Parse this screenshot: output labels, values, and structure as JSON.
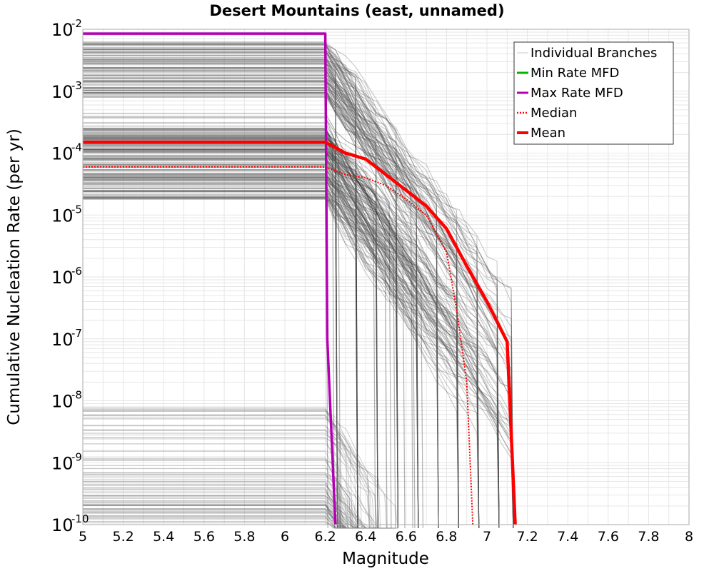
{
  "chart_data": {
    "type": "line",
    "title": "Desert Mountains (east, unnamed)",
    "xlabel": "Magnitude",
    "ylabel": "Cumulative Nucleation Rate (per yr)",
    "xlim": [
      5,
      8
    ],
    "ylim_exponents": [
      -10,
      -2
    ],
    "yscale": "log",
    "grid": true,
    "x_ticks": [
      "5",
      "5.2",
      "5.4",
      "5.6",
      "5.8",
      "6",
      "6.2",
      "6.4",
      "6.6",
      "6.8",
      "7",
      "7.2",
      "7.4",
      "7.6",
      "7.8",
      "8"
    ],
    "y_ticks": [
      {
        "base": "10",
        "exp": "-2"
      },
      {
        "base": "10",
        "exp": "-3"
      },
      {
        "base": "10",
        "exp": "-4"
      },
      {
        "base": "10",
        "exp": "-5"
      },
      {
        "base": "10",
        "exp": "-6"
      },
      {
        "base": "10",
        "exp": "-7"
      },
      {
        "base": "10",
        "exp": "-8"
      },
      {
        "base": "10",
        "exp": "-9"
      },
      {
        "base": "10",
        "exp": "-10"
      }
    ],
    "legend_position": "top-right",
    "legend": [
      {
        "label": "Individual Branches",
        "color": "#c8c8c8",
        "style": "solid-thin"
      },
      {
        "label": "Min Rate MFD",
        "color": "#00b400",
        "style": "solid"
      },
      {
        "label": "Max Rate MFD",
        "color": "#b400b4",
        "style": "solid"
      },
      {
        "label": "Median",
        "color": "#ff0000",
        "style": "dotted"
      },
      {
        "label": "Mean",
        "color": "#ff0000",
        "style": "solid-thick"
      }
    ],
    "series": [
      {
        "name": "Max Rate MFD",
        "color": "#b400b4",
        "x": [
          5.0,
          6.2,
          6.21,
          6.25
        ],
        "y": [
          0.0085,
          0.0085,
          1e-07,
          1e-10
        ]
      },
      {
        "name": "Mean",
        "color": "#ff0000",
        "x": [
          5.0,
          6.2,
          6.3,
          6.4,
          6.5,
          6.6,
          6.7,
          6.8,
          6.9,
          7.0,
          7.1,
          7.14
        ],
        "y": [
          0.00015,
          0.00015,
          0.0001,
          8e-05,
          4.5e-05,
          2.5e-05,
          1.4e-05,
          6e-06,
          1.5e-06,
          4e-07,
          9e-08,
          1e-10
        ]
      },
      {
        "name": "Median",
        "color": "#ff0000",
        "x": [
          5.0,
          6.2,
          6.3,
          6.4,
          6.5,
          6.6,
          6.7,
          6.8,
          6.85,
          6.9,
          6.93
        ],
        "y": [
          6e-05,
          6e-05,
          4.5e-05,
          4e-05,
          3e-05,
          1.8e-05,
          1e-05,
          2.5e-06,
          3e-07,
          2e-08,
          1e-10
        ]
      }
    ],
    "branches_note_count": 420
  },
  "colors": {
    "branch": "#555555",
    "grid": "#e6e6e6",
    "frame": "#aaaaaa"
  }
}
